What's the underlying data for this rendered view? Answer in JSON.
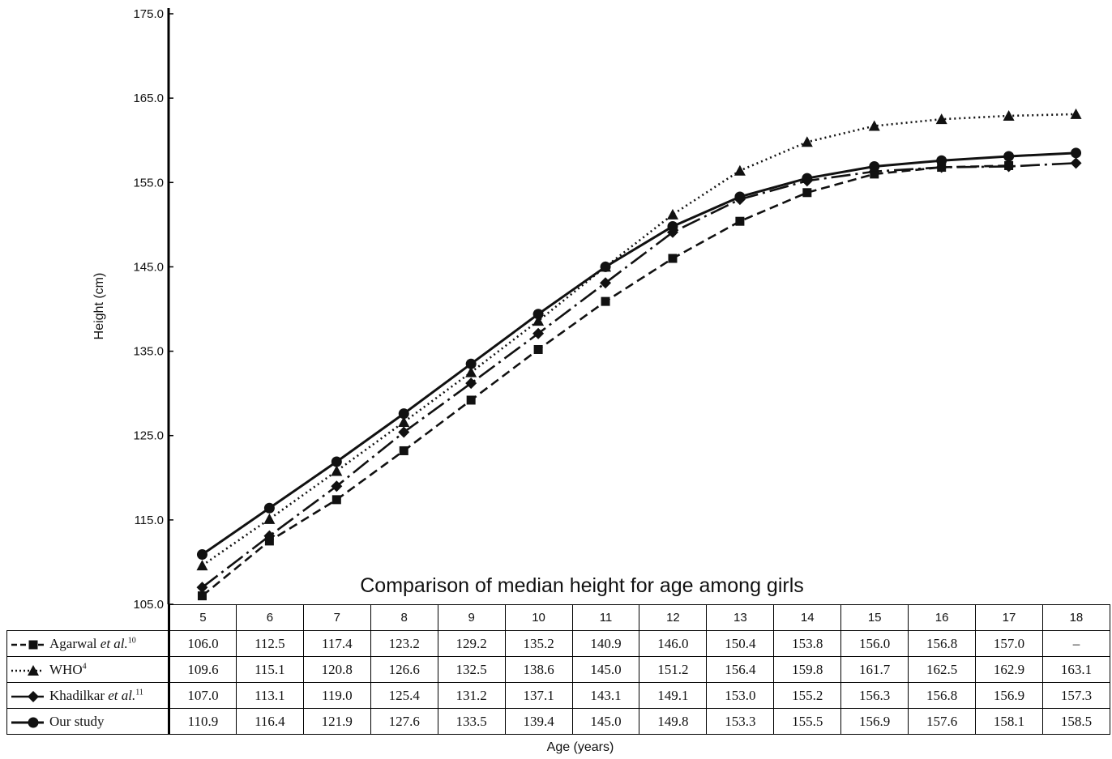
{
  "chart_data": {
    "type": "line",
    "title": "Comparison of median height for age among girls",
    "xlabel": "Age (years)",
    "ylabel": "Height (cm)",
    "ylim": [
      105,
      175
    ],
    "yticks": [
      "105.0",
      "115.0",
      "125.0",
      "135.0",
      "145.0",
      "155.0",
      "165.0",
      "175.0"
    ],
    "categories": [
      "5",
      "6",
      "7",
      "8",
      "9",
      "10",
      "11",
      "12",
      "13",
      "14",
      "15",
      "16",
      "17",
      "18"
    ],
    "legend_placement": "table-left",
    "series": [
      {
        "name": "Agarwal",
        "name_suffix": "et al.",
        "ref": "10",
        "marker": "square",
        "line": "dashed",
        "values": [
          106.0,
          112.5,
          117.4,
          123.2,
          129.2,
          135.2,
          140.9,
          146.0,
          150.4,
          153.8,
          156.0,
          156.8,
          157.0,
          null
        ],
        "display": [
          "106.0",
          "112.5",
          "117.4",
          "123.2",
          "129.2",
          "135.2",
          "140.9",
          "146.0",
          "150.4",
          "153.8",
          "156.0",
          "156.8",
          "157.0",
          "–"
        ]
      },
      {
        "name": "WHO",
        "name_suffix": "",
        "ref": "4",
        "marker": "triangle",
        "line": "dotted",
        "values": [
          109.6,
          115.1,
          120.8,
          126.6,
          132.5,
          138.6,
          145.0,
          151.2,
          156.4,
          159.8,
          161.7,
          162.5,
          162.9,
          163.1
        ],
        "display": [
          "109.6",
          "115.1",
          "120.8",
          "126.6",
          "132.5",
          "138.6",
          "145.0",
          "151.2",
          "156.4",
          "159.8",
          "161.7",
          "162.5",
          "162.9",
          "163.1"
        ]
      },
      {
        "name": "Khadilkar",
        "name_suffix": "et al.",
        "ref": "11",
        "marker": "diamond",
        "line": "dash-dot",
        "values": [
          107.0,
          113.1,
          119.0,
          125.4,
          131.2,
          137.1,
          143.1,
          149.1,
          153.0,
          155.2,
          156.3,
          156.8,
          156.9,
          157.3
        ],
        "display": [
          "107.0",
          "113.1",
          "119.0",
          "125.4",
          "131.2",
          "137.1",
          "143.1",
          "149.1",
          "153.0",
          "155.2",
          "156.3",
          "156.8",
          "156.9",
          "157.3"
        ]
      },
      {
        "name": "Our study",
        "name_suffix": "",
        "ref": "",
        "marker": "circle",
        "line": "solid",
        "values": [
          110.9,
          116.4,
          121.9,
          127.6,
          133.5,
          139.4,
          145.0,
          149.8,
          153.3,
          155.5,
          156.9,
          157.6,
          158.1,
          158.5
        ],
        "display": [
          "110.9",
          "116.4",
          "121.9",
          "127.6",
          "133.5",
          "139.4",
          "145.0",
          "149.8",
          "153.3",
          "155.5",
          "156.9",
          "157.6",
          "158.1",
          "158.5"
        ]
      }
    ],
    "colors": {
      "line": "#111111",
      "background": "#ffffff"
    },
    "grid": false
  }
}
